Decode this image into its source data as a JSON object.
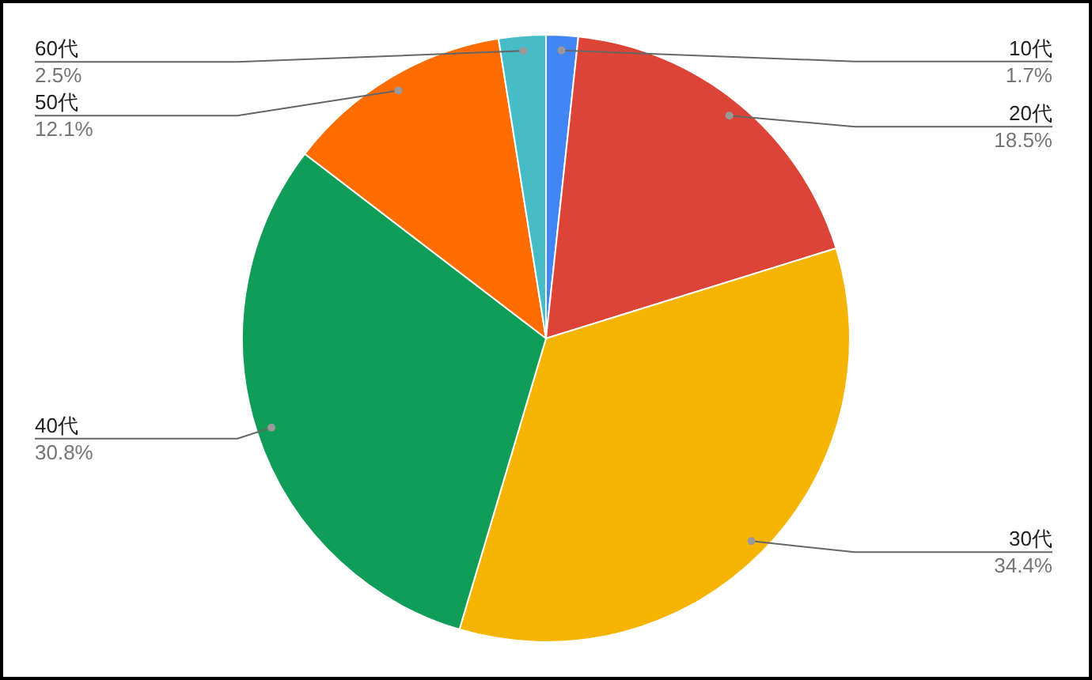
{
  "chart_data": {
    "type": "pie",
    "categories": [
      "10代",
      "20代",
      "30代",
      "40代",
      "50代",
      "60代"
    ],
    "values": [
      1.7,
      18.5,
      34.4,
      30.8,
      12.1,
      2.5
    ],
    "value_labels": [
      "1.7%",
      "18.5%",
      "34.4%",
      "30.8%",
      "12.1%",
      "2.5%"
    ],
    "colors": [
      "#4285f4",
      "#db4437",
      "#f4b400",
      "#0f9d58",
      "#ff6d01",
      "#46bdc6"
    ]
  }
}
